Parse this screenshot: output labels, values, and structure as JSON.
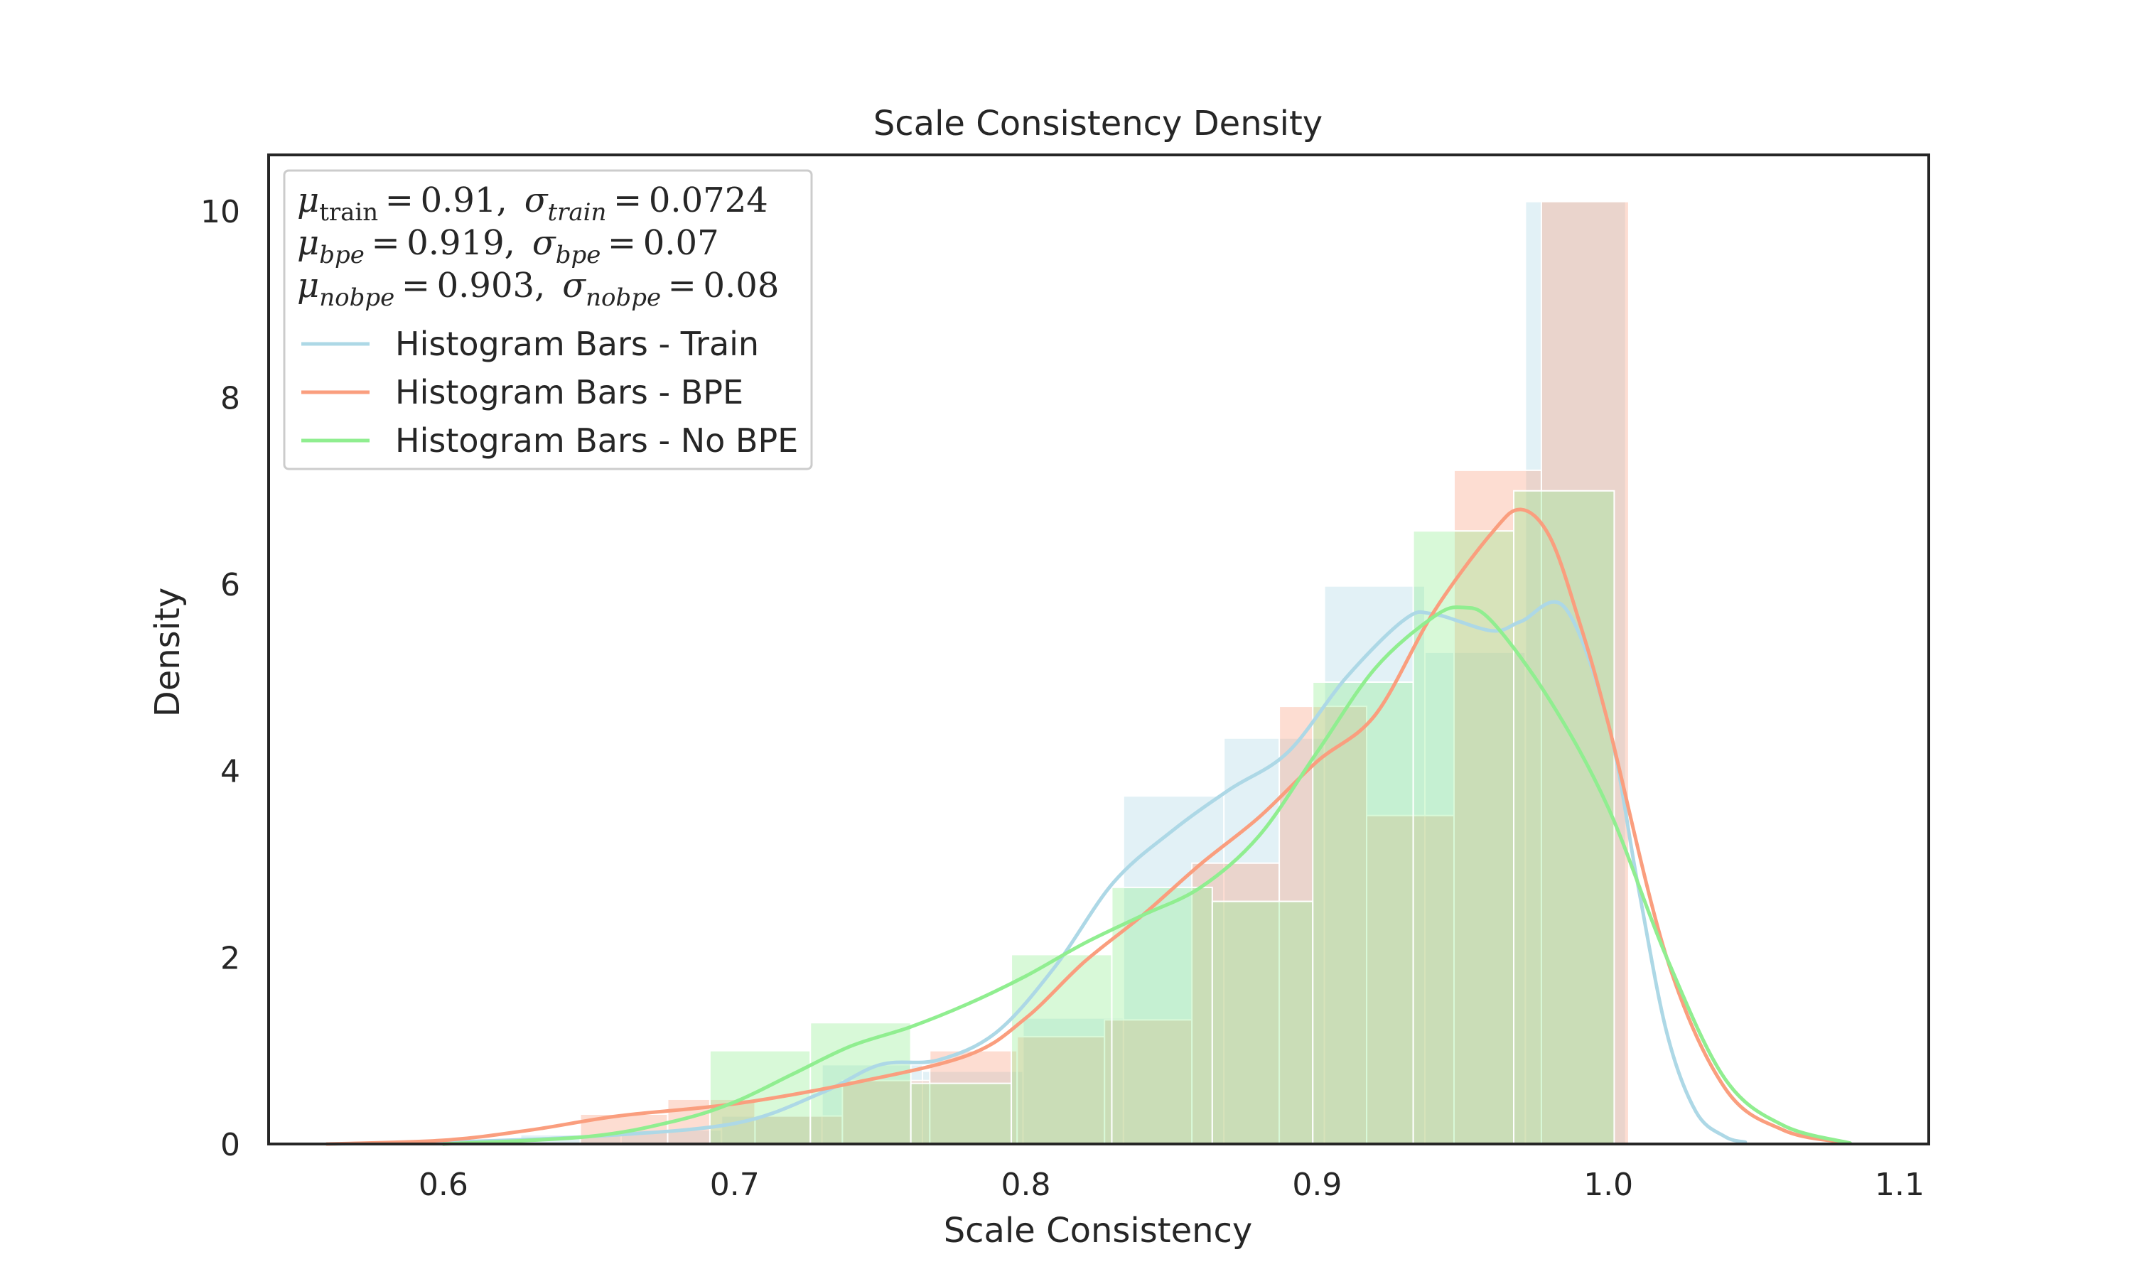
{
  "chart_data": {
    "type": "bar",
    "title": "Scale Consistency Density",
    "xlabel": "Scale Consistency",
    "ylabel": "Density",
    "xlim": [
      0.54,
      1.11
    ],
    "ylim": [
      0,
      10.6
    ],
    "xticks": [
      0.6,
      0.7,
      0.8,
      0.9,
      1.0,
      1.1
    ],
    "xtick_labels": [
      "0.6",
      "0.7",
      "0.8",
      "0.9",
      "1.0",
      "1.1"
    ],
    "yticks": [
      0,
      2,
      4,
      6,
      8,
      10
    ],
    "ytick_labels": [
      "0",
      "2",
      "4",
      "6",
      "8",
      "10"
    ],
    "grid": false,
    "legend_position": "top-left",
    "stats": [
      {
        "mu_sub": "train",
        "mu_val": "0.91",
        "sigma_sub": "train",
        "sigma_val": "0.0724"
      },
      {
        "mu_sub": "bpe",
        "mu_val": "0.919",
        "sigma_sub": "bpe",
        "sigma_val": "0.07"
      },
      {
        "mu_sub": "nobpe",
        "mu_val": "0.903",
        "sigma_sub": "nobpe",
        "sigma_val": "0.08"
      }
    ],
    "series": [
      {
        "name": "Histogram Bars - Train",
        "color": "#add8e6",
        "bars": [
          {
            "x0": 0.6265,
            "x1": 0.661,
            "y": 0.1
          },
          {
            "x0": 0.661,
            "x1": 0.6955,
            "y": 0.15
          },
          {
            "x0": 0.6955,
            "x1": 0.73,
            "y": 0.3
          },
          {
            "x0": 0.73,
            "x1": 0.7645,
            "y": 0.85
          },
          {
            "x0": 0.7645,
            "x1": 0.799,
            "y": 0.78
          },
          {
            "x0": 0.799,
            "x1": 0.8335,
            "y": 1.35
          },
          {
            "x0": 0.8335,
            "x1": 0.868,
            "y": 3.73
          },
          {
            "x0": 0.868,
            "x1": 0.9025,
            "y": 4.35
          },
          {
            "x0": 0.9025,
            "x1": 0.937,
            "y": 5.98
          },
          {
            "x0": 0.937,
            "x1": 0.9715,
            "y": 5.27
          },
          {
            "x0": 0.9715,
            "x1": 1.006,
            "y": 10.1
          }
        ],
        "kde_x": [
          0.56,
          0.6,
          0.65,
          0.7,
          0.73,
          0.75,
          0.77,
          0.79,
          0.81,
          0.83,
          0.85,
          0.87,
          0.89,
          0.91,
          0.93,
          0.94,
          0.96,
          0.97,
          0.985,
          1.0,
          1.01,
          1.02,
          1.03,
          1.04,
          1.047
        ],
        "kde_y": [
          0.0,
          0.02,
          0.08,
          0.22,
          0.55,
          0.85,
          0.9,
          1.2,
          1.9,
          2.8,
          3.35,
          3.8,
          4.2,
          5.0,
          5.62,
          5.68,
          5.5,
          5.6,
          5.75,
          4.5,
          2.8,
          1.2,
          0.35,
          0.08,
          0.02
        ]
      },
      {
        "name": "Histogram Bars - BPE",
        "color": "#fa9e7e",
        "bars": [
          {
            "x0": 0.647,
            "x1": 0.677,
            "y": 0.32
          },
          {
            "x0": 0.677,
            "x1": 0.707,
            "y": 0.48
          },
          {
            "x0": 0.707,
            "x1": 0.737,
            "y": 0.3
          },
          {
            "x0": 0.737,
            "x1": 0.767,
            "y": 0.68
          },
          {
            "x0": 0.767,
            "x1": 0.797,
            "y": 1.0
          },
          {
            "x0": 0.797,
            "x1": 0.827,
            "y": 1.15
          },
          {
            "x0": 0.827,
            "x1": 0.857,
            "y": 1.33
          },
          {
            "x0": 0.857,
            "x1": 0.887,
            "y": 3.01
          },
          {
            "x0": 0.887,
            "x1": 0.917,
            "y": 4.69
          },
          {
            "x0": 0.917,
            "x1": 0.947,
            "y": 3.52
          },
          {
            "x0": 0.947,
            "x1": 0.977,
            "y": 7.22
          },
          {
            "x0": 0.977,
            "x1": 1.007,
            "y": 10.1
          }
        ],
        "kde_x": [
          0.56,
          0.6,
          0.63,
          0.66,
          0.7,
          0.74,
          0.78,
          0.8,
          0.82,
          0.84,
          0.86,
          0.88,
          0.9,
          0.92,
          0.94,
          0.96,
          0.97,
          0.98,
          0.99,
          1.0,
          1.02,
          1.04,
          1.06,
          1.08
        ],
        "kde_y": [
          0.0,
          0.04,
          0.15,
          0.3,
          0.43,
          0.65,
          0.95,
          1.35,
          1.95,
          2.45,
          3.0,
          3.5,
          4.1,
          4.6,
          5.7,
          6.55,
          6.8,
          6.5,
          5.6,
          4.5,
          2.0,
          0.6,
          0.15,
          0.02
        ]
      },
      {
        "name": "Histogram Bars - No BPE",
        "color": "#90ee90",
        "bars": [
          {
            "x0": 0.6915,
            "x1": 0.726,
            "y": 1.0
          },
          {
            "x0": 0.726,
            "x1": 0.7605,
            "y": 1.3
          },
          {
            "x0": 0.7605,
            "x1": 0.795,
            "y": 0.65
          },
          {
            "x0": 0.795,
            "x1": 0.8295,
            "y": 2.03
          },
          {
            "x0": 0.8295,
            "x1": 0.864,
            "y": 2.75
          },
          {
            "x0": 0.864,
            "x1": 0.8985,
            "y": 2.6
          },
          {
            "x0": 0.8985,
            "x1": 0.933,
            "y": 4.95
          },
          {
            "x0": 0.933,
            "x1": 0.9675,
            "y": 6.57
          },
          {
            "x0": 0.9675,
            "x1": 1.002,
            "y": 7.0
          }
        ],
        "kde_x": [
          0.6,
          0.65,
          0.68,
          0.7,
          0.72,
          0.74,
          0.76,
          0.78,
          0.8,
          0.82,
          0.84,
          0.86,
          0.88,
          0.9,
          0.92,
          0.94,
          0.95,
          0.96,
          0.98,
          1.0,
          1.02,
          1.04,
          1.06,
          1.083
        ],
        "kde_y": [
          0.0,
          0.08,
          0.25,
          0.45,
          0.75,
          1.05,
          1.25,
          1.5,
          1.8,
          2.15,
          2.45,
          2.75,
          3.3,
          4.2,
          5.1,
          5.65,
          5.75,
          5.6,
          4.75,
          3.6,
          2.0,
          0.7,
          0.2,
          0.01
        ]
      }
    ]
  }
}
